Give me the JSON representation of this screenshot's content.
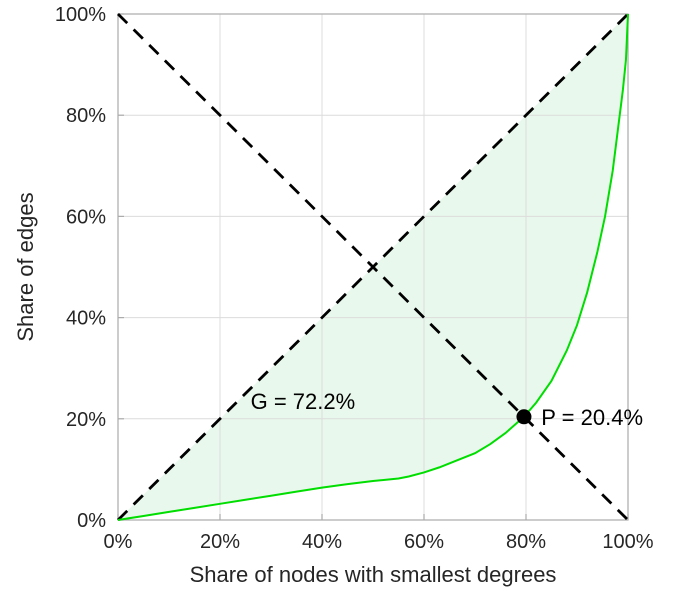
{
  "chart_data": {
    "type": "line",
    "title": "",
    "xlabel": "Share of nodes with smallest degrees",
    "ylabel": "Share of edges",
    "xlim": [
      0,
      100
    ],
    "ylim": [
      0,
      100
    ],
    "xticks": [
      0,
      20,
      40,
      60,
      80,
      100
    ],
    "yticks": [
      0,
      20,
      40,
      60,
      80,
      100
    ],
    "tick_suffix": "%",
    "grid": true,
    "legend": "none",
    "series": [
      {
        "name": "equality-diagonal",
        "style": "dashed",
        "color": "#000000",
        "width": 2.8,
        "points": [
          [
            0,
            0
          ],
          [
            100,
            100
          ]
        ]
      },
      {
        "name": "anti-diagonal",
        "style": "dashed",
        "color": "#000000",
        "width": 2.8,
        "points": [
          [
            0,
            100
          ],
          [
            100,
            0
          ]
        ]
      },
      {
        "name": "lorenz-curve",
        "style": "solid",
        "color": "#00dd00",
        "width": 2,
        "points": [
          [
            0,
            0
          ],
          [
            5,
            0.8
          ],
          [
            10,
            1.6
          ],
          [
            15,
            2.4
          ],
          [
            20,
            3.2
          ],
          [
            25,
            4.0
          ],
          [
            30,
            4.8
          ],
          [
            35,
            5.6
          ],
          [
            40,
            6.4
          ],
          [
            45,
            7.1
          ],
          [
            50,
            7.7
          ],
          [
            55,
            8.2
          ],
          [
            57,
            8.6
          ],
          [
            60,
            9.4
          ],
          [
            63,
            10.4
          ],
          [
            66,
            11.6
          ],
          [
            70,
            13.2
          ],
          [
            73,
            15.0
          ],
          [
            76,
            17.2
          ],
          [
            79.6,
            20.4
          ],
          [
            82,
            23.2
          ],
          [
            85,
            27.5
          ],
          [
            88,
            33.5
          ],
          [
            90,
            38.5
          ],
          [
            92,
            45
          ],
          [
            94,
            53
          ],
          [
            95.5,
            60
          ],
          [
            97,
            69
          ],
          [
            98,
            77
          ],
          [
            99,
            85
          ],
          [
            99.6,
            91
          ],
          [
            100,
            100
          ]
        ]
      }
    ],
    "shaded_area": {
      "between": [
        "equality-diagonal",
        "lorenz-curve"
      ],
      "fill": "#e9f8ec"
    },
    "marker": {
      "x": 79.6,
      "y": 20.4,
      "color": "#000000",
      "radius": 7.5
    },
    "annotations": [
      {
        "id": "gini-label",
        "text": "G = 72.2%",
        "x": 26,
        "y": 23.5,
        "anchor": "start",
        "color": "#000000"
      },
      {
        "id": "p-label",
        "text": "P = 20.4%",
        "x": 83.0,
        "y": 20.4,
        "anchor": "start",
        "color": "#000000"
      }
    ],
    "colors": {
      "grid": "#dcdcdc",
      "axis_box": "#ababab",
      "tick_text": "#262626",
      "label_text": "#262626"
    }
  }
}
